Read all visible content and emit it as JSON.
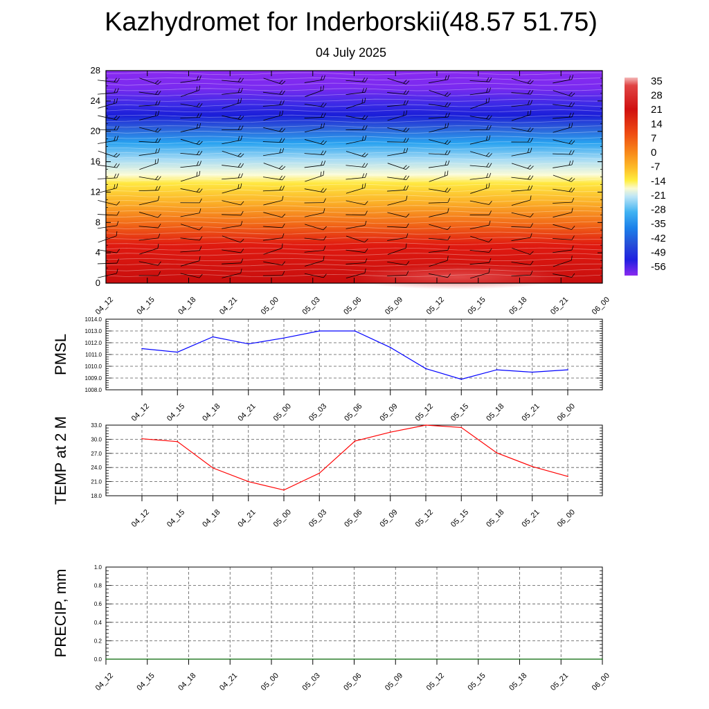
{
  "header": {
    "title": "Kazhydromet for Inderborskii(48.57 51.75)",
    "subtitle": "04 July 2025"
  },
  "time_labels": [
    "04_12",
    "04_15",
    "04_18",
    "04_21",
    "05_00",
    "05_03",
    "05_06",
    "05_09",
    "05_12",
    "05_15",
    "05_18",
    "05_21",
    "06_00"
  ],
  "colors": {
    "pmsl_line": "#0000ff",
    "temp_line": "#ff0000",
    "precip_line": "#006400",
    "grid": "#555555"
  },
  "chart_data": [
    {
      "type": "heatmap",
      "title": "",
      "xlabel": "",
      "ylabel": "",
      "x": [
        "04_12",
        "04_15",
        "04_18",
        "04_21",
        "05_00",
        "05_03",
        "05_06",
        "05_09",
        "05_12",
        "05_15",
        "05_18",
        "05_21",
        "06_00"
      ],
      "ylim": [
        0,
        28
      ],
      "yticks": [
        "0",
        "4",
        "8",
        "12",
        "16",
        "20",
        "24",
        "28"
      ],
      "colorbar": {
        "labels": [
          "35",
          "28",
          "21",
          "14",
          "7",
          "0",
          "-7",
          "-14",
          "-21",
          "-28",
          "-35",
          "-42",
          "-49",
          "-56"
        ],
        "range": [
          -60,
          36
        ]
      },
      "temperature_profile": {
        "heights": [
          0,
          2,
          4,
          6,
          8,
          10,
          12,
          13,
          14,
          16,
          18,
          20,
          22,
          24,
          26,
          28
        ],
        "values": [
          30,
          26,
          20,
          15,
          9,
          3,
          -4,
          -9,
          -14,
          -26,
          -38,
          -48,
          -56,
          -56,
          -58,
          -60
        ]
      },
      "wind_barbs": true
    },
    {
      "type": "line",
      "ylabel": "PMSL",
      "title": "",
      "categories": [
        "04_12",
        "04_15",
        "04_18",
        "04_21",
        "05_00",
        "05_03",
        "05_06",
        "05_09",
        "05_12",
        "05_15",
        "05_18",
        "05_21",
        "06_00"
      ],
      "values": [
        1011.5,
        1011.2,
        1012.5,
        1011.9,
        1012.4,
        1013.0,
        1013.0,
        1011.6,
        1009.8,
        1008.9,
        1009.7,
        1009.5,
        1009.7
      ],
      "ylim": [
        1008.0,
        1014.0
      ],
      "yticks": [
        "1008.0",
        "1009.0",
        "1010.0",
        "1011.0",
        "1012.0",
        "1013.0",
        "1014.0"
      ],
      "grid": true
    },
    {
      "type": "line",
      "ylabel": "TEMP at 2 M",
      "title": "",
      "categories": [
        "04_12",
        "04_15",
        "04_18",
        "04_21",
        "05_00",
        "05_03",
        "05_06",
        "05_09",
        "05_12",
        "05_15",
        "05_18",
        "05_21",
        "06_00"
      ],
      "values": [
        30.1,
        29.5,
        23.9,
        21.0,
        19.2,
        22.8,
        29.6,
        31.5,
        33.0,
        32.5,
        27.1,
        24.2,
        22.1
      ],
      "ylim": [
        18.0,
        33.0
      ],
      "yticks": [
        "18.0",
        "21.0",
        "24.0",
        "27.0",
        "30.0",
        "33.0"
      ],
      "grid": true
    },
    {
      "type": "line",
      "ylabel": "PRECIP, mm",
      "title": "",
      "categories": [
        "04_12",
        "04_15",
        "04_18",
        "04_21",
        "05_00",
        "05_03",
        "05_06",
        "05_09",
        "05_12",
        "05_15",
        "05_18",
        "05_21",
        "06_00"
      ],
      "values": [
        0,
        0,
        0,
        0,
        0,
        0,
        0,
        0,
        0,
        0,
        0,
        0,
        0
      ],
      "ylim": [
        0.0,
        1.0
      ],
      "yticks": [
        "0.0",
        "0.2",
        "0.4",
        "0.6",
        "0.8",
        "1.0"
      ],
      "grid": true
    }
  ]
}
